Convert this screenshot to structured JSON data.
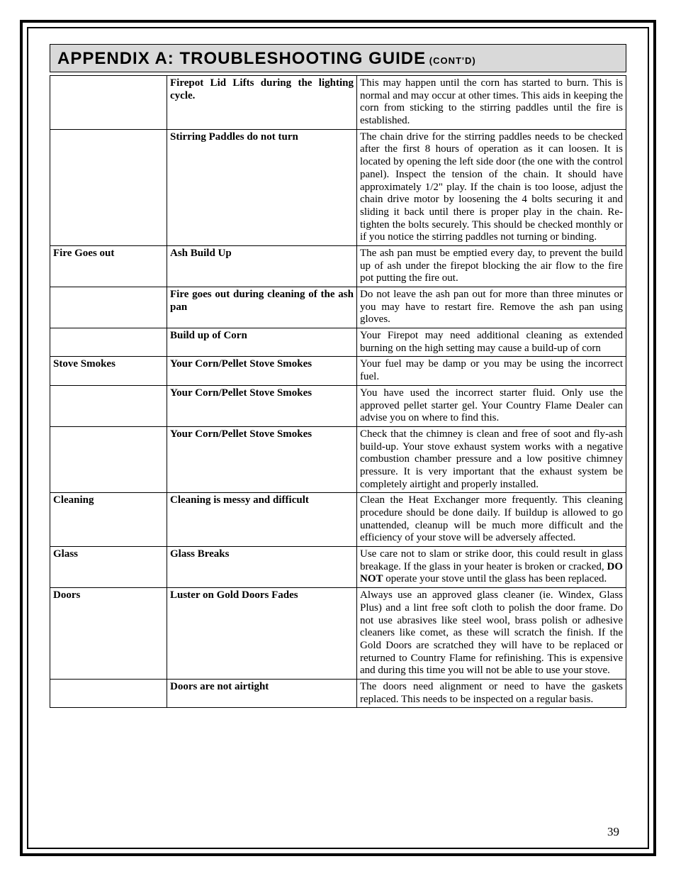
{
  "banner": {
    "title": "APPENDIX A:  TROUBLESHOOTING GUIDE",
    "contd": " (CONT'D)"
  },
  "rows": [
    {
      "cat": "",
      "problem": "Firepot Lid Lifts during the lighting cycle.",
      "solution": "This may happen until the corn has started to burn.  This is normal and may occur at other times.  This aids in keeping the corn from sticking to the stirring paddles until the fire is established."
    },
    {
      "cat": "",
      "problem": "Stirring Paddles do not turn",
      "solution": "The chain drive for the stirring paddles needs to be checked after the first 8 hours of operation as it can loosen.  It is located by opening the left side door (the one with the control panel).  Inspect the tension of the chain.  It should have approximately 1/2\" play.  If the chain is too loose, adjust the chain drive motor by loosening the 4 bolts securing it and sliding it back until there is proper play in the chain.  Re-tighten the bolts securely.  This should be checked monthly or if you notice the stirring paddles not turning or binding."
    },
    {
      "cat": "Fire Goes out",
      "problem": "Ash Build Up",
      "solution": "The ash pan must be emptied every day, to prevent the build up of ash under the firepot blocking the air flow to the fire pot putting the fire out."
    },
    {
      "cat": "",
      "problem": "Fire goes out during cleaning of the ash pan",
      "solution": "Do not leave the ash pan out for more than three minutes or you may have to restart fire. Remove the ash pan using gloves."
    },
    {
      "cat": "",
      "problem": "Build up of Corn",
      "solution": "Your Firepot may need additional cleaning as extended burning on the high setting may cause a build-up of corn"
    },
    {
      "cat": "Stove Smokes",
      "problem": "Your Corn/Pellet Stove Smokes",
      "solution": "Your fuel may be damp or you may be using the incorrect fuel."
    },
    {
      "cat": "",
      "problem": "Your Corn/Pellet Stove Smokes",
      "solution": "You have used the incorrect starter fluid.  Only use the approved pellet starter gel.  Your Country Flame Dealer can advise you on where to find this."
    },
    {
      "cat": "",
      "problem": "Your Corn/Pellet Stove Smokes",
      "solution": "Check that the chimney is clean and free of soot and fly-ash build-up.  Your stove exhaust system works with a negative combustion chamber pressure and a low positive chimney pressure.  It is very important that the exhaust system be completely airtight and properly installed."
    },
    {
      "cat": "Cleaning",
      "problem": "Cleaning is messy and difficult",
      "solution": "Clean the Heat Exchanger more frequently. This cleaning procedure should be done daily. If buildup is allowed to go unattended, cleanup will be much more difficult and the efficiency of your stove will be adversely affected."
    },
    {
      "cat": "Glass",
      "problem": "Glass Breaks",
      "solution_html": "Use care not to slam or strike door, this could result in glass breakage.  If the glass in your heater is broken or cracked, <b>DO NOT</b> operate your stove until the glass has been replaced."
    },
    {
      "cat": "Doors",
      "problem": "Luster on Gold Doors Fades",
      "solution": "Always use an approved glass cleaner (ie. Windex, Glass Plus) and a lint free soft cloth to polish the door frame.  Do not use abrasives like steel wool, brass polish or adhesive cleaners like comet, as these will scratch the finish.  If the Gold Doors are scratched they will have to be replaced or returned to Country Flame for refinishing.  This is expensive and during this time you will not be able to use your stove."
    },
    {
      "cat": "",
      "problem": "Doors are not airtight",
      "solution": "The doors need alignment or need to have the gaskets replaced.  This needs to be inspected on a regular basis."
    }
  ],
  "page_number": "39"
}
